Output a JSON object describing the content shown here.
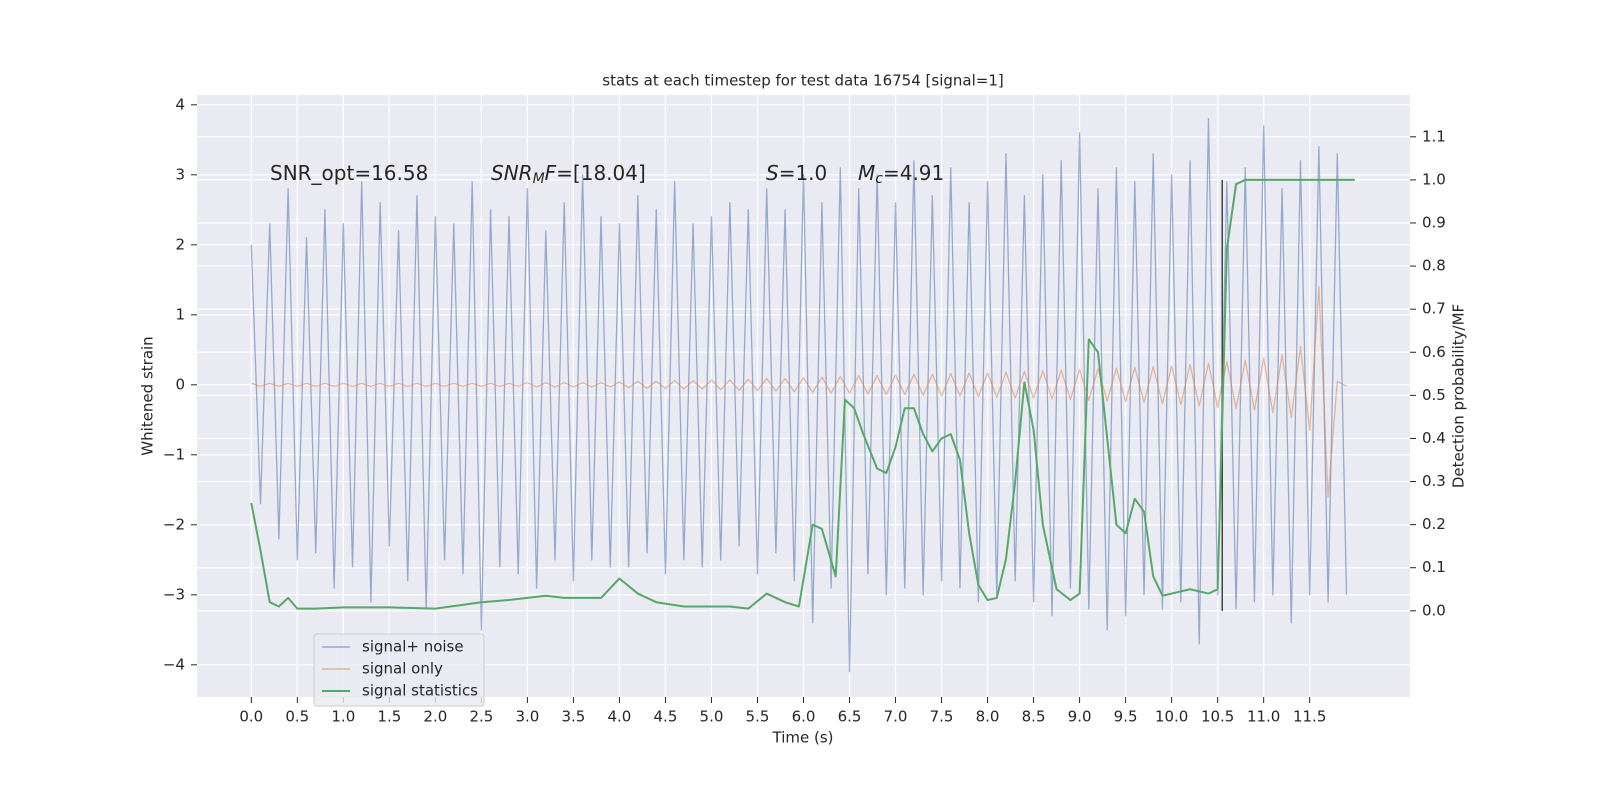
{
  "chart_data": {
    "type": "line",
    "title": "stats at each timestep for test data 16754 [signal=1]",
    "xlabel": "Time (s)",
    "ylabel": "Whitened strain",
    "y2label": "Detection probability/MF",
    "annotations": [
      [
        "SNR_opt=16.58"
      ],
      [
        "SNR",
        "M",
        "F",
        "=[18.04]"
      ],
      [
        "S",
        "=1.0"
      ],
      [
        "M",
        "c",
        "=4.91"
      ]
    ],
    "xlim": [
      -0.59,
      12.59
    ],
    "ylim": [
      -4.46,
      4.14
    ],
    "y2lim": [
      -0.2,
      1.197
    ],
    "xticks": [
      {
        "value": 0,
        "label": "0.0"
      },
      0.5,
      {
        "value": 1,
        "label": "1.0"
      },
      1.5,
      {
        "value": 2,
        "label": "2.0"
      },
      2.5,
      {
        "value": 3,
        "label": "3.0"
      },
      3.5,
      {
        "value": 4,
        "label": "4.0"
      },
      4.5,
      {
        "value": 5,
        "label": "5.0"
      },
      5.5,
      {
        "value": 6,
        "label": "6.0"
      },
      6.5,
      {
        "value": 7,
        "label": "7.0"
      },
      7.5,
      {
        "value": 8,
        "label": "8.0"
      },
      8.5,
      {
        "value": 9,
        "label": "9.0"
      },
      9.5,
      {
        "value": 10,
        "label": "10.0"
      },
      10.5,
      {
        "value": 11,
        "label": "11.0"
      },
      11.5
    ],
    "yticks": [
      {
        "value": -4,
        "label": "−4"
      },
      {
        "value": -3,
        "label": "−3"
      },
      {
        "value": -2,
        "label": "−2"
      },
      {
        "value": -1,
        "label": "−1"
      },
      0,
      1,
      2,
      3,
      4
    ],
    "y2ticks": [
      {
        "value": 0,
        "label": "0.0"
      },
      0.1,
      0.2,
      0.3,
      0.4,
      0.5,
      0.6,
      0.7,
      0.8,
      0.9,
      {
        "value": 1,
        "label": "1.0"
      },
      1.1
    ],
    "grid": true,
    "legend": "lower left",
    "vline": {
      "x": 10.55,
      "y2": [
        0,
        1
      ],
      "color": "#444444"
    },
    "series": [
      {
        "name": "signal+ noise",
        "color": "#4c72b0",
        "axis": "y",
        "x": [
          0,
          0.1,
          0.2,
          0.3,
          0.4,
          0.5,
          0.6,
          0.7,
          0.8,
          0.9,
          1,
          1.1,
          1.2,
          1.3,
          1.4,
          1.5,
          1.6,
          1.7,
          1.8,
          1.9,
          2,
          2.1,
          2.2,
          2.3,
          2.4,
          2.5,
          2.6,
          2.7,
          2.8,
          2.9,
          3,
          3.1,
          3.2,
          3.3,
          3.4,
          3.5,
          3.6,
          3.7,
          3.8,
          3.9,
          4,
          4.1,
          4.2,
          4.3,
          4.4,
          4.5,
          4.6,
          4.7,
          4.8,
          4.9,
          5,
          5.1,
          5.2,
          5.3,
          5.4,
          5.5,
          5.6,
          5.7,
          5.8,
          5.9,
          6,
          6.1,
          6.2,
          6.3,
          6.4,
          6.5,
          6.6,
          6.7,
          6.8,
          6.9,
          7,
          7.1,
          7.2,
          7.3,
          7.4,
          7.5,
          7.6,
          7.7,
          7.8,
          7.9,
          8,
          8.1,
          8.2,
          8.3,
          8.4,
          8.5,
          8.6,
          8.7,
          8.8,
          8.9,
          9,
          9.1,
          9.2,
          9.3,
          9.4,
          9.5,
          9.6,
          9.7,
          9.8,
          9.9,
          10,
          10.1,
          10.2,
          10.3,
          10.4,
          10.5,
          10.6,
          10.7,
          10.8,
          10.9,
          11,
          11.1,
          11.2,
          11.3,
          11.4,
          11.5,
          11.6,
          11.7,
          11.8,
          11.9
        ],
        "values": [
          2.0,
          -1.7,
          2.3,
          -2.2,
          2.8,
          -2.5,
          2.1,
          -2.4,
          2.5,
          -2.9,
          2.3,
          -2.6,
          2.9,
          -3.1,
          2.6,
          -2.3,
          2.2,
          -2.8,
          2.7,
          -3.2,
          2.4,
          -2.5,
          2.3,
          -2.7,
          2.9,
          -3.5,
          2.5,
          -2.6,
          2.4,
          -2.7,
          2.8,
          -2.9,
          2.2,
          -2.5,
          2.6,
          -2.8,
          3.0,
          -2.5,
          2.4,
          -2.6,
          2.3,
          -2.6,
          2.7,
          -2.4,
          2.5,
          -2.7,
          2.9,
          -2.5,
          2.3,
          -2.6,
          2.4,
          -2.5,
          2.6,
          -2.3,
          2.5,
          -2.7,
          2.8,
          -2.4,
          2.5,
          -2.8,
          3.0,
          -3.4,
          2.6,
          -2.9,
          3.1,
          -4.1,
          2.8,
          -2.7,
          3.0,
          -3.0,
          2.6,
          -2.9,
          3.2,
          -3.0,
          2.7,
          -2.8,
          3.1,
          -2.9,
          2.6,
          -3.1,
          2.9,
          -3.0,
          3.3,
          -2.8,
          2.7,
          -3.1,
          3.0,
          -3.3,
          3.2,
          -2.9,
          3.6,
          -3.2,
          2.8,
          -3.5,
          3.1,
          -3.3,
          2.9,
          -3.0,
          3.3,
          -3.2,
          3.0,
          -3.1,
          3.2,
          -3.7,
          3.8,
          -3.0,
          2.9,
          -3.2,
          3.1,
          -3.1,
          3.7,
          -3.0,
          2.8,
          -3.4,
          3.2,
          -3.0,
          3.4,
          -3.1,
          3.3,
          -3.0
        ]
      },
      {
        "name": "signal only",
        "color": "#dd8452",
        "axis": "y",
        "x": [
          0,
          0.1,
          0.2,
          0.3,
          0.4,
          0.5,
          0.6,
          0.7,
          0.8,
          0.9,
          1,
          1.1,
          1.2,
          1.3,
          1.4,
          1.5,
          1.6,
          1.7,
          1.8,
          1.9,
          2,
          2.1,
          2.2,
          2.3,
          2.4,
          2.5,
          2.6,
          2.7,
          2.8,
          2.9,
          3,
          3.1,
          3.2,
          3.3,
          3.4,
          3.5,
          3.6,
          3.7,
          3.8,
          3.9,
          4,
          4.1,
          4.2,
          4.3,
          4.4,
          4.5,
          4.6,
          4.7,
          4.8,
          4.9,
          5,
          5.1,
          5.2,
          5.3,
          5.4,
          5.5,
          5.6,
          5.7,
          5.8,
          5.9,
          6,
          6.1,
          6.2,
          6.3,
          6.4,
          6.5,
          6.6,
          6.7,
          6.8,
          6.9,
          7,
          7.1,
          7.2,
          7.3,
          7.4,
          7.5,
          7.6,
          7.7,
          7.8,
          7.9,
          8,
          8.1,
          8.2,
          8.3,
          8.4,
          8.5,
          8.6,
          8.7,
          8.8,
          8.9,
          9,
          9.1,
          9.2,
          9.3,
          9.4,
          9.5,
          9.6,
          9.7,
          9.8,
          9.9,
          10,
          10.1,
          10.2,
          10.3,
          10.4,
          10.5,
          10.6,
          10.7,
          10.8,
          10.9,
          11,
          11.1,
          11.2,
          11.3,
          11.4,
          11.5,
          11.6,
          11.7,
          11.8,
          11.9
        ],
        "values": [
          0.02,
          -0.02,
          0.02,
          -0.02,
          0.02,
          -0.02,
          0.02,
          -0.02,
          0.02,
          -0.02,
          0.02,
          -0.02,
          0.02,
          -0.02,
          0.02,
          -0.02,
          0.02,
          -0.02,
          0.02,
          -0.02,
          0.02,
          -0.02,
          0.02,
          -0.02,
          0.02,
          -0.02,
          0.02,
          -0.02,
          0.02,
          -0.02,
          0.03,
          -0.03,
          0.03,
          -0.03,
          0.03,
          -0.03,
          0.03,
          -0.03,
          0.03,
          -0.03,
          0.04,
          -0.04,
          0.05,
          -0.05,
          0.05,
          -0.05,
          0.06,
          -0.06,
          0.06,
          -0.06,
          0.07,
          -0.07,
          0.07,
          -0.08,
          0.08,
          -0.08,
          0.09,
          -0.09,
          0.09,
          -0.1,
          0.1,
          -0.11,
          0.11,
          -0.12,
          0.12,
          -0.12,
          0.13,
          -0.13,
          0.13,
          -0.14,
          0.14,
          -0.14,
          0.15,
          -0.15,
          0.15,
          -0.16,
          0.16,
          -0.16,
          0.17,
          -0.17,
          0.17,
          -0.18,
          0.18,
          -0.19,
          0.19,
          -0.19,
          0.2,
          -0.2,
          0.21,
          -0.21,
          0.22,
          -0.22,
          0.23,
          -0.23,
          0.24,
          -0.24,
          0.25,
          -0.25,
          0.26,
          -0.27,
          0.27,
          -0.28,
          0.29,
          -0.3,
          0.31,
          -0.32,
          0.33,
          -0.34,
          0.35,
          -0.36,
          0.38,
          -0.4,
          0.43,
          -0.47,
          0.55,
          -0.65,
          1.4,
          -1.6,
          0.05,
          -0.02
        ]
      },
      {
        "name": "signal statistics",
        "color": "#55a868",
        "axis": "y2",
        "x": [
          0,
          0.1,
          0.2,
          0.3,
          0.4,
          0.5,
          0.7,
          1,
          1.5,
          2,
          2.5,
          2.8,
          3,
          3.2,
          3.4,
          3.6,
          3.8,
          4,
          4.2,
          4.4,
          4.7,
          5,
          5.2,
          5.4,
          5.6,
          5.8,
          5.95,
          6.1,
          6.2,
          6.35,
          6.45,
          6.55,
          6.65,
          6.8,
          6.9,
          7,
          7.1,
          7.2,
          7.3,
          7.4,
          7.5,
          7.6,
          7.7,
          7.8,
          7.9,
          8,
          8.1,
          8.2,
          8.3,
          8.4,
          8.5,
          8.6,
          8.75,
          8.9,
          9,
          9.1,
          9.2,
          9.3,
          9.4,
          9.5,
          9.6,
          9.7,
          9.8,
          9.9,
          10,
          10.2,
          10.4,
          10.5,
          10.6,
          10.7,
          10.8,
          11,
          11.5,
          11.99
        ],
        "values": [
          0.25,
          0.14,
          0.02,
          0.01,
          0.03,
          0.005,
          0.005,
          0.008,
          0.008,
          0.005,
          0.02,
          0.025,
          0.03,
          0.035,
          0.03,
          0.03,
          0.03,
          0.075,
          0.04,
          0.02,
          0.01,
          0.01,
          0.01,
          0.005,
          0.04,
          0.02,
          0.01,
          0.2,
          0.19,
          0.08,
          0.49,
          0.47,
          0.41,
          0.33,
          0.32,
          0.38,
          0.47,
          0.47,
          0.41,
          0.37,
          0.4,
          0.41,
          0.35,
          0.18,
          0.06,
          0.025,
          0.03,
          0.12,
          0.3,
          0.53,
          0.42,
          0.2,
          0.05,
          0.025,
          0.04,
          0.63,
          0.6,
          0.4,
          0.2,
          0.18,
          0.26,
          0.23,
          0.08,
          0.035,
          0.04,
          0.05,
          0.04,
          0.05,
          0.84,
          0.99,
          1.0,
          1.0,
          1.0,
          1.0
        ]
      }
    ]
  }
}
